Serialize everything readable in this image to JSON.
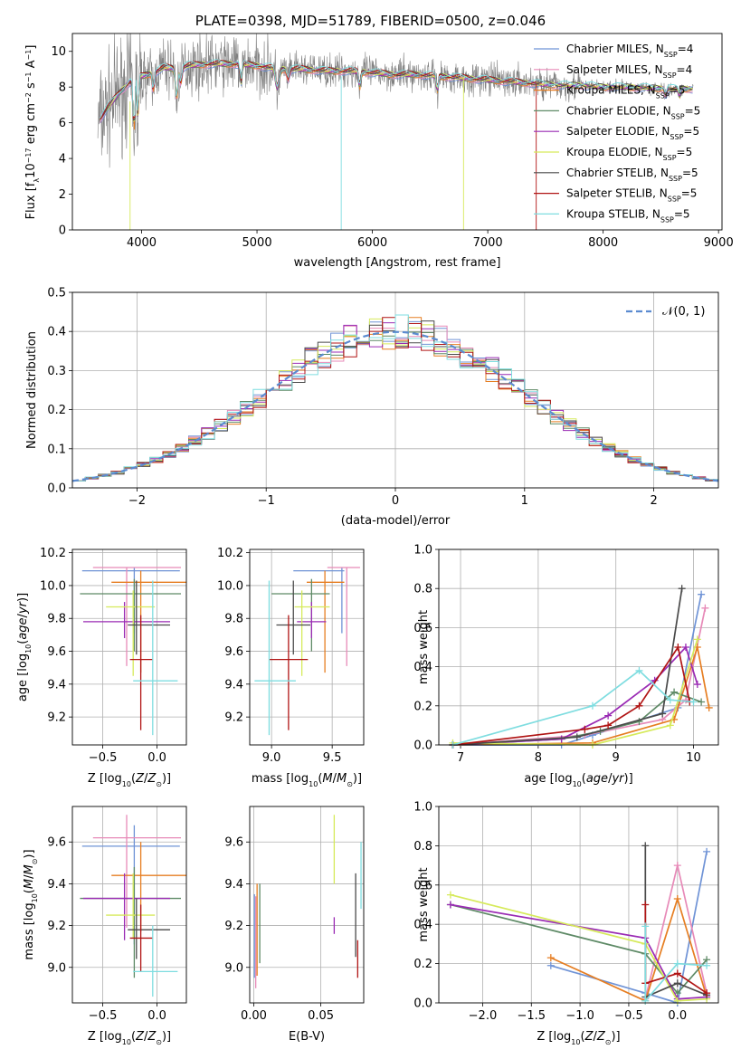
{
  "colors": {
    "chabrier_miles": "#6f93d6",
    "salpeter_miles": "#e78ab8",
    "kroupa_miles": "#e67e22",
    "chabrier_elodie": "#5e8a66",
    "salpeter_elodie": "#9a2bb4",
    "kroupa_elodie": "#d6ea5b",
    "chabrier_stelib": "#4a4a4a",
    "salpeter_stelib": "#b01414",
    "kroupa_stelib": "#7fdde0",
    "data": "#808080",
    "normal": "#5b8bd0"
  },
  "chart_data": [
    {
      "type": "line",
      "title": "PLATE=0398, MJD=51789, FIBERID=0500, z=0.046",
      "xlabel": "wavelength [Angstrom, rest frame]",
      "ylabel": "Flux [fλ10⁻¹⁷ erg cm⁻² s⁻¹ A⁻¹]",
      "xlim": [
        3400,
        9030
      ],
      "ylim": [
        0,
        11
      ],
      "xticks": [
        "4000",
        "5000",
        "6000",
        "7000",
        "8000",
        "9000"
      ],
      "yticks": [
        "0",
        "2",
        "4",
        "6",
        "8",
        "10"
      ],
      "grid": false,
      "legend_position": "top-right",
      "legend": [
        {
          "name": "Chabrier MILES",
          "n": "4"
        },
        {
          "name": "Salpeter MILES",
          "n": "4"
        },
        {
          "name": "Kroupa MILES",
          "n": "5"
        },
        {
          "name": "Chabrier ELODIE",
          "n": "5"
        },
        {
          "name": "Salpeter ELODIE",
          "n": "5"
        },
        {
          "name": "Kroupa ELODIE",
          "n": "5"
        },
        {
          "name": "Chabrier STELIB",
          "n": "5"
        },
        {
          "name": "Salpeter STELIB",
          "n": "5"
        },
        {
          "name": "Kroupa STELIB",
          "n": "5"
        }
      ],
      "legend_suffix": "N",
      "legend_sub": "SSP",
      "continuum": {
        "x": [
          3620,
          3700,
          3800,
          3900,
          4000,
          4100,
          4200,
          4300,
          4400,
          4600,
          4800,
          5000,
          5200,
          5400,
          5600,
          5800,
          6000,
          6200,
          6400,
          6600,
          6800,
          7000,
          7200,
          7400,
          7600,
          7800,
          8000,
          8200,
          8400,
          8600,
          8780
        ],
        "y": [
          6.0,
          6.8,
          7.6,
          8.3,
          8.6,
          8.8,
          9.1,
          9.0,
          9.2,
          9.3,
          9.3,
          9.2,
          9.0,
          9.0,
          8.9,
          8.9,
          8.8,
          8.7,
          8.7,
          8.6,
          8.5,
          8.4,
          8.3,
          8.2,
          8.1,
          8.1,
          8.0,
          8.0,
          7.95,
          7.9,
          7.9
        ]
      }
    },
    {
      "type": "histogram",
      "xlabel": "(data-model)/error",
      "ylabel": "Normed distribution",
      "xlim": [
        -2.5,
        2.5
      ],
      "ylim": [
        0,
        0.5
      ],
      "xticks": [
        "−2",
        "−1",
        "0",
        "1",
        "2"
      ],
      "yticks": [
        "0.0",
        "0.1",
        "0.2",
        "0.3",
        "0.4",
        "0.5"
      ],
      "grid": true,
      "legend_position": "top-right",
      "legend_label": "𝒩(0, 1)",
      "bin_width": 0.1
    },
    {
      "type": "errorbar",
      "xlabel": "Z [log10(Z/Z⊙)]",
      "ylabel": "age [log10(age/yr)]",
      "xlim": [
        -0.78,
        0.27
      ],
      "ylim": [
        9.03,
        10.22
      ],
      "xticks": [
        "−0.5",
        "0.0"
      ],
      "yticks": [
        "9.2",
        "9.4",
        "9.6",
        "9.8",
        "10.0",
        "10.2"
      ],
      "points": [
        {
          "x": -0.21,
          "xerr": [
            0.48,
            0.42
          ],
          "y": 10.09,
          "yerr": [
            0.38,
            0.02
          ]
        },
        {
          "x": -0.28,
          "xerr": [
            0.31,
            0.5
          ],
          "y": 10.11,
          "yerr": [
            0.6,
            0.0
          ]
        },
        {
          "x": -0.15,
          "xerr": [
            0.27,
            0.42
          ],
          "y": 10.02,
          "yerr": [
            0.55,
            0.07
          ]
        },
        {
          "x": -0.21,
          "xerr": [
            0.5,
            0.43
          ],
          "y": 9.95,
          "yerr": [
            0.35,
            0.09
          ]
        },
        {
          "x": -0.3,
          "xerr": [
            0.38,
            0.42
          ],
          "y": 9.78,
          "yerr": [
            0.1,
            0.12
          ]
        },
        {
          "x": -0.22,
          "xerr": [
            0.25,
            0.2
          ],
          "y": 9.87,
          "yerr": [
            0.42,
            0.1
          ]
        },
        {
          "x": -0.19,
          "xerr": [
            0.08,
            0.31
          ],
          "y": 9.76,
          "yerr": [
            0.18,
            0.27
          ]
        },
        {
          "x": -0.15,
          "xerr": [
            0.1,
            0.11
          ],
          "y": 9.55,
          "yerr": [
            0.43,
            0.27
          ]
        },
        {
          "x": -0.04,
          "xerr": [
            0.18,
            0.23
          ],
          "y": 9.42,
          "yerr": [
            0.33,
            0.61
          ]
        }
      ]
    },
    {
      "type": "errorbar",
      "xlabel": "mass [log10(M/M⊙)]",
      "ylabel": "",
      "xlim": [
        8.82,
        9.76
      ],
      "ylim": [
        9.03,
        10.22
      ],
      "xticks": [
        "9.0",
        "9.5"
      ],
      "yticks": [
        "9.2",
        "9.4",
        "9.6",
        "9.8",
        "10.0",
        "10.2"
      ],
      "points": [
        {
          "x": 9.58,
          "xerr": [
            0.4,
            0.02
          ],
          "y": 10.09,
          "yerr": [
            0.38,
            0.02
          ]
        },
        {
          "x": 9.62,
          "xerr": [
            0.16,
            0.11
          ],
          "y": 10.11,
          "yerr": [
            0.6,
            0.0
          ]
        },
        {
          "x": 9.44,
          "xerr": [
            0.15,
            0.16
          ],
          "y": 10.02,
          "yerr": [
            0.55,
            0.07
          ]
        },
        {
          "x": 9.33,
          "xerr": [
            0.33,
            0.15
          ],
          "y": 9.95,
          "yerr": [
            0.35,
            0.09
          ]
        },
        {
          "x": 9.33,
          "xerr": [
            0.12,
            0.12
          ],
          "y": 9.78,
          "yerr": [
            0.1,
            0.12
          ]
        },
        {
          "x": 9.25,
          "xerr": [
            0.06,
            0.23
          ],
          "y": 9.87,
          "yerr": [
            0.42,
            0.1
          ]
        },
        {
          "x": 9.18,
          "xerr": [
            0.14,
            0.14
          ],
          "y": 9.76,
          "yerr": [
            0.18,
            0.27
          ]
        },
        {
          "x": 9.14,
          "xerr": [
            0.16,
            0.16
          ],
          "y": 9.55,
          "yerr": [
            0.43,
            0.27
          ]
        },
        {
          "x": 8.98,
          "xerr": [
            0.12,
            0.22
          ],
          "y": 9.42,
          "yerr": [
            0.33,
            0.61
          ]
        }
      ]
    },
    {
      "type": "line",
      "xlabel": "age  [log10(age/yr)]",
      "ylabel": "mass weight",
      "xlim": [
        6.72,
        10.32
      ],
      "ylim": [
        0,
        1
      ],
      "xticks": [
        "7",
        "8",
        "9",
        "10"
      ],
      "yticks": [
        "0.0",
        "0.2",
        "0.4",
        "0.6",
        "0.8",
        "1.0"
      ],
      "grid": true,
      "series": [
        {
          "x": [
            6.9,
            8.3,
            8.7,
            9.8,
            10.1
          ],
          "y": [
            0.0,
            0.0,
            0.05,
            0.19,
            0.77
          ]
        },
        {
          "x": [
            6.9,
            8.6,
            9.6,
            9.9,
            10.15
          ],
          "y": [
            0.0,
            0.05,
            0.13,
            0.23,
            0.7
          ]
        },
        {
          "x": [
            6.9,
            8.7,
            9.75,
            10.05,
            10.2
          ],
          "y": [
            0.0,
            0.01,
            0.13,
            0.5,
            0.19
          ]
        },
        {
          "x": [
            6.9,
            8.3,
            8.8,
            9.3,
            9.75,
            10.1
          ],
          "y": [
            0.0,
            0.03,
            0.07,
            0.12,
            0.27,
            0.22
          ]
        },
        {
          "x": [
            6.9,
            8.3,
            8.9,
            9.5,
            9.9,
            10.05
          ],
          "y": [
            0.0,
            0.03,
            0.15,
            0.33,
            0.5,
            0.31
          ]
        },
        {
          "x": [
            6.9,
            8.7,
            9.7,
            10.05
          ],
          "y": [
            0.01,
            0.0,
            0.1,
            0.54
          ]
        },
        {
          "x": [
            6.9,
            8.5,
            9.6,
            9.85
          ],
          "y": [
            0.0,
            0.04,
            0.16,
            0.8
          ]
        },
        {
          "x": [
            6.9,
            8.6,
            8.9,
            9.3,
            9.8,
            9.95
          ],
          "y": [
            0.0,
            0.08,
            0.1,
            0.2,
            0.5,
            0.22
          ]
        },
        {
          "x": [
            6.9,
            8.7,
            9.3,
            9.7,
            10.0
          ],
          "y": [
            0.0,
            0.2,
            0.38,
            0.23,
            0.22
          ]
        }
      ]
    },
    {
      "type": "errorbar",
      "xlabel": "Z [log10(Z/Z⊙)]",
      "ylabel": "mass [log10(M/M⊙)]",
      "xlim": [
        -0.78,
        0.27
      ],
      "ylim": [
        8.83,
        9.77
      ],
      "xticks": [
        "−0.5",
        "0.0"
      ],
      "yticks": [
        "9.0",
        "9.2",
        "9.4",
        "9.6"
      ],
      "points": [
        {
          "x": -0.21,
          "xerr": [
            0.48,
            0.42
          ],
          "y": 9.58,
          "yerr": [
            0.47,
            0.1
          ]
        },
        {
          "x": -0.28,
          "xerr": [
            0.31,
            0.5
          ],
          "y": 9.62,
          "yerr": [
            0.43,
            0.11
          ]
        },
        {
          "x": -0.15,
          "xerr": [
            0.27,
            0.42
          ],
          "y": 9.44,
          "yerr": [
            0.27,
            0.16
          ]
        },
        {
          "x": -0.21,
          "xerr": [
            0.5,
            0.43
          ],
          "y": 9.33,
          "yerr": [
            0.38,
            0.15
          ]
        },
        {
          "x": -0.3,
          "xerr": [
            0.38,
            0.42
          ],
          "y": 9.33,
          "yerr": [
            0.2,
            0.12
          ]
        },
        {
          "x": -0.22,
          "xerr": [
            0.25,
            0.2
          ],
          "y": 9.25,
          "yerr": [
            0.11,
            0.2
          ]
        },
        {
          "x": -0.19,
          "xerr": [
            0.08,
            0.31
          ],
          "y": 9.18,
          "yerr": [
            0.14,
            0.15
          ]
        },
        {
          "x": -0.15,
          "xerr": [
            0.1,
            0.11
          ],
          "y": 9.14,
          "yerr": [
            0.16,
            0.16
          ]
        },
        {
          "x": -0.04,
          "xerr": [
            0.18,
            0.23
          ],
          "y": 8.98,
          "yerr": [
            0.12,
            0.22
          ]
        }
      ]
    },
    {
      "type": "errorbar",
      "xlabel": "E(B-V)",
      "ylabel": "",
      "xlim": [
        -0.003,
        0.082
      ],
      "ylim": [
        8.83,
        9.77
      ],
      "xticks": [
        "0.00",
        "0.05"
      ],
      "yticks": [
        "9.0",
        "9.2",
        "9.4",
        "9.6"
      ],
      "points": [
        {
          "x": 0.0005,
          "y": 9.15,
          "yerr": [
            0.2,
            0.2
          ]
        },
        {
          "x": 0.0015,
          "y": 9.12,
          "yerr": [
            0.22,
            0.22
          ]
        },
        {
          "x": 0.0025,
          "y": 9.18,
          "yerr": [
            0.22,
            0.22
          ]
        },
        {
          "x": 0.0045,
          "y": 9.19,
          "yerr": [
            0.17,
            0.21
          ]
        },
        {
          "x": 0.06,
          "y": 9.2,
          "yerr": [
            0.04,
            0.04
          ]
        },
        {
          "x": 0.06,
          "y": 9.55,
          "yerr": [
            0.15,
            0.18
          ]
        },
        {
          "x": 0.076,
          "y": 9.3,
          "yerr": [
            0.25,
            0.15
          ]
        },
        {
          "x": 0.0775,
          "y": 9.05,
          "yerr": [
            0.1,
            0.08
          ]
        },
        {
          "x": 0.08,
          "y": 9.44,
          "yerr": [
            0.16,
            0.16
          ]
        }
      ]
    },
    {
      "type": "line",
      "xlabel": "Z [log10(Z/Z⊙)]",
      "ylabel": "mass weight",
      "xlim": [
        -2.45,
        0.42
      ],
      "ylim": [
        0,
        1
      ],
      "xticks": [
        "−2.0",
        "−1.5",
        "−1.0",
        "−0.5",
        "0.0"
      ],
      "yticks": [
        "0.0",
        "0.2",
        "0.4",
        "0.6",
        "0.8",
        "1.0"
      ],
      "grid": true,
      "series": [
        {
          "x": [
            -1.3,
            -0.33,
            0.0,
            0.3
          ],
          "y": [
            0.19,
            0.05,
            0.0,
            0.77
          ]
        },
        {
          "x": [
            -0.33,
            0.0,
            0.3
          ],
          "y": [
            0.02,
            0.7,
            0.05
          ]
        },
        {
          "x": [
            -1.3,
            -0.33,
            0.0,
            0.3
          ],
          "y": [
            0.23,
            0.01,
            0.53,
            0.03
          ]
        },
        {
          "x": [
            -2.33,
            -0.33,
            0.0,
            0.3
          ],
          "y": [
            0.5,
            0.25,
            0.05,
            0.22
          ]
        },
        {
          "x": [
            -2.33,
            -0.33,
            0.0,
            0.3
          ],
          "y": [
            0.5,
            0.33,
            0.02,
            0.03
          ]
        },
        {
          "x": [
            -2.33,
            -0.33,
            0.0,
            0.3
          ],
          "y": [
            0.55,
            0.3,
            0.01,
            0.02
          ]
        },
        {
          "x": [
            -0.33,
            -0.33,
            0.0,
            0.3
          ],
          "y": [
            0.8,
            0.03,
            0.1,
            0.04
          ]
        },
        {
          "x": [
            -0.33,
            -0.33,
            0.0,
            0.3
          ],
          "y": [
            0.5,
            0.1,
            0.15,
            0.05
          ]
        },
        {
          "x": [
            -0.33,
            -0.33,
            0.0,
            0.3
          ],
          "y": [
            0.39,
            0.01,
            0.2,
            0.19
          ]
        }
      ]
    }
  ]
}
